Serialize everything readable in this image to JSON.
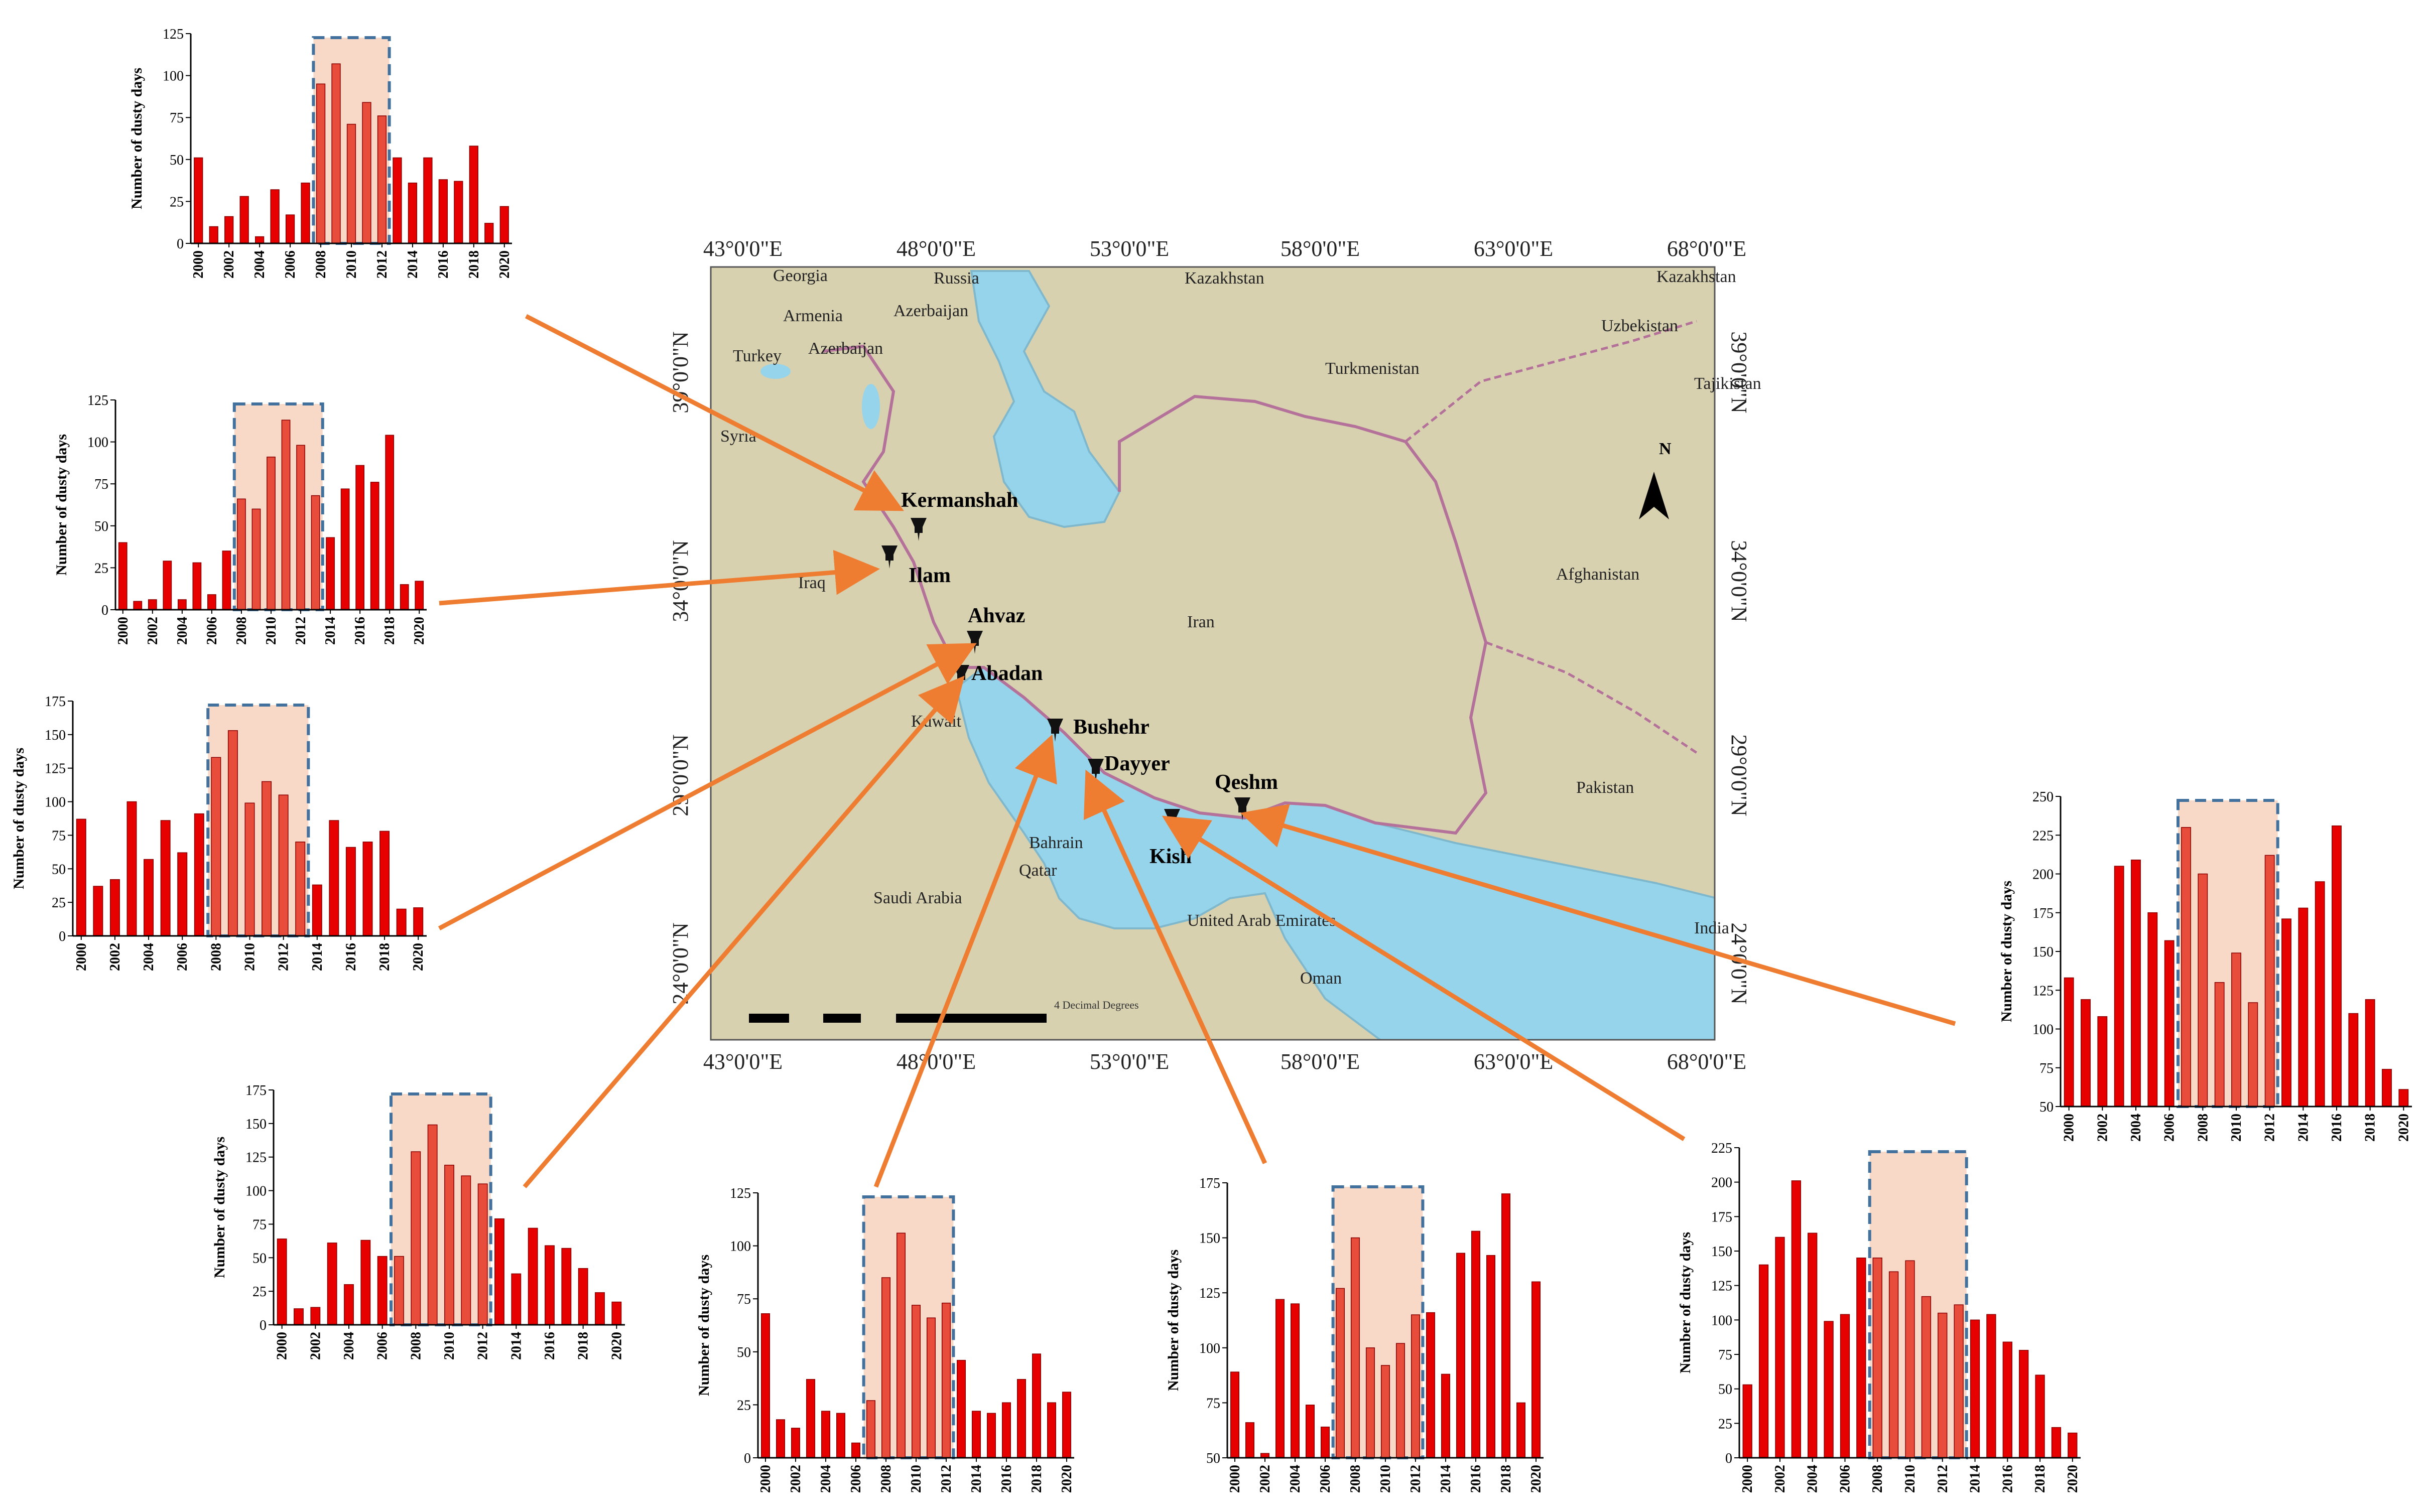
{
  "map": {
    "top_lon_labels": [
      "43°0'0\"E",
      "48°0'0\"E",
      "53°0'0\"E",
      "58°0'0\"E",
      "63°0'0\"E",
      "68°0'0\"E"
    ],
    "bottom_lon_labels": [
      "43°0'0\"E",
      "48°0'0\"E",
      "53°0'0\"E",
      "58°0'0\"E",
      "63°0'0\"E",
      "68°0'0\"E"
    ],
    "left_lat_labels": [
      "39°0'0\"N",
      "34°0'0\"N",
      "29°0'0\"N",
      "24°0'0\"N"
    ],
    "right_lat_labels": [
      "39°0'0\"N",
      "34°0'0\"N",
      "29°0'0\"N",
      "24°0'0\"N"
    ],
    "countries": [
      {
        "name": "Georgia"
      },
      {
        "name": "Russia"
      },
      {
        "name": "Kazakhstan"
      },
      {
        "name": "Kazakhstan"
      },
      {
        "name": "Armenia"
      },
      {
        "name": "Azerbaijan"
      },
      {
        "name": "Azerbaijan"
      },
      {
        "name": "Uzbekistan"
      },
      {
        "name": "Turkey"
      },
      {
        "name": "Turkmenistan"
      },
      {
        "name": "Tajikistan"
      },
      {
        "name": "Syria"
      },
      {
        "name": "Iraq"
      },
      {
        "name": "Iran"
      },
      {
        "name": "Afghanistan"
      },
      {
        "name": "Kuwait"
      },
      {
        "name": "Bahrain"
      },
      {
        "name": "Qatar"
      },
      {
        "name": "Saudi Arabia"
      },
      {
        "name": "United Arab Emirates"
      },
      {
        "name": "Oman"
      },
      {
        "name": "Pakistan"
      },
      {
        "name": "India"
      }
    ],
    "stations": [
      {
        "name": "Kermanshah"
      },
      {
        "name": "Ilam"
      },
      {
        "name": "Ahvaz"
      },
      {
        "name": "Abadan"
      },
      {
        "name": "Bushehr"
      },
      {
        "name": "Dayyer"
      },
      {
        "name": "Qeshm"
      },
      {
        "name": "Kish"
      }
    ],
    "north_label": "N",
    "scale_label": "4 Decimal Degrees",
    "colors": {
      "land": "#d7d1b0",
      "sea": "#96d4eb",
      "border": "#b4729a",
      "arrow": "#ee7d31",
      "bar": "#e60000",
      "highlight": "#f8d8c6",
      "highlight_border": "#41719c"
    }
  },
  "chart_data": [
    {
      "type": "bar",
      "ylabel": "Number of dusty days",
      "ylim": [
        0,
        125
      ],
      "yticks": [
        0,
        25,
        50,
        75,
        100,
        125
      ],
      "x": [
        2000,
        2001,
        2002,
        2003,
        2004,
        2005,
        2006,
        2007,
        2008,
        2009,
        2010,
        2011,
        2012,
        2013,
        2014,
        2015,
        2016,
        2017,
        2018,
        2019,
        2020
      ],
      "xtick_labels": [
        "2000",
        "2002",
        "2004",
        "2006",
        "2008",
        "2010",
        "2012",
        "2014",
        "2016",
        "2018",
        "2020"
      ],
      "values": [
        51,
        10,
        16,
        28,
        4,
        32,
        17,
        36,
        95,
        107,
        71,
        84,
        76,
        51,
        36,
        51,
        38,
        37,
        58,
        12,
        22
      ],
      "highlight": [
        2008,
        2012
      ]
    },
    {
      "type": "bar",
      "ylabel": "Number of dusty days",
      "ylim": [
        0,
        125
      ],
      "yticks": [
        0,
        25,
        50,
        75,
        100,
        125
      ],
      "x": [
        2000,
        2001,
        2002,
        2003,
        2004,
        2005,
        2006,
        2007,
        2008,
        2009,
        2010,
        2011,
        2012,
        2013,
        2014,
        2015,
        2016,
        2017,
        2018,
        2019,
        2020
      ],
      "xtick_labels": [
        "2000",
        "2002",
        "2004",
        "2006",
        "2008",
        "2010",
        "2012",
        "2014",
        "2016",
        "2018",
        "2020"
      ],
      "values": [
        40,
        5,
        6,
        29,
        6,
        28,
        9,
        35,
        66,
        60,
        91,
        113,
        98,
        68,
        43,
        72,
        86,
        76,
        104,
        15,
        17
      ],
      "highlight": [
        2008,
        2013
      ]
    },
    {
      "type": "bar",
      "ylabel": "Number of dusty days",
      "ylim": [
        0,
        175
      ],
      "yticks": [
        0,
        25,
        50,
        75,
        100,
        125,
        150,
        175
      ],
      "x": [
        2000,
        2001,
        2002,
        2003,
        2004,
        2005,
        2006,
        2007,
        2008,
        2009,
        2010,
        2011,
        2012,
        2013,
        2014,
        2015,
        2016,
        2017,
        2018,
        2019,
        2020
      ],
      "xtick_labels": [
        "2000",
        "2002",
        "2004",
        "2006",
        "2008",
        "2010",
        "2012",
        "2014",
        "2016",
        "2018",
        "2020"
      ],
      "values": [
        87,
        37,
        42,
        100,
        57,
        86,
        62,
        91,
        133,
        153,
        99,
        115,
        105,
        70,
        38,
        86,
        66,
        70,
        78,
        20,
        21
      ],
      "highlight": [
        2008,
        2013
      ]
    },
    {
      "type": "bar",
      "ylabel": "Number of dusty days",
      "ylim": [
        0,
        175
      ],
      "yticks": [
        0,
        25,
        50,
        75,
        100,
        125,
        150,
        175
      ],
      "x": [
        2000,
        2001,
        2002,
        2003,
        2004,
        2005,
        2006,
        2007,
        2008,
        2009,
        2010,
        2011,
        2012,
        2013,
        2014,
        2015,
        2016,
        2017,
        2018,
        2019,
        2020
      ],
      "xtick_labels": [
        "2000",
        "2002",
        "2004",
        "2006",
        "2008",
        "2010",
        "2012",
        "2014",
        "2016",
        "2018",
        "2020"
      ],
      "values": [
        64,
        12,
        13,
        61,
        30,
        63,
        51,
        51,
        129,
        149,
        119,
        111,
        105,
        79,
        38,
        72,
        59,
        57,
        42,
        24,
        17
      ],
      "highlight": [
        2007,
        2012
      ]
    },
    {
      "type": "bar",
      "ylabel": "Number of dusty days",
      "ylim": [
        0,
        125
      ],
      "yticks": [
        0,
        25,
        50,
        75,
        100,
        125
      ],
      "x": [
        2000,
        2001,
        2002,
        2003,
        2004,
        2005,
        2006,
        2007,
        2008,
        2009,
        2010,
        2011,
        2012,
        2013,
        2014,
        2015,
        2016,
        2017,
        2018,
        2019,
        2020
      ],
      "xtick_labels": [
        "2000",
        "2002",
        "2004",
        "2006",
        "2008",
        "2010",
        "2012",
        "2014",
        "2016",
        "2018",
        "2020"
      ],
      "values": [
        68,
        18,
        14,
        37,
        22,
        21,
        7,
        27,
        85,
        106,
        72,
        66,
        73,
        46,
        22,
        21,
        26,
        37,
        49,
        26,
        31
      ],
      "highlight": [
        2007,
        2012
      ]
    },
    {
      "type": "bar",
      "ylabel": "Number of dusty days",
      "ylim": [
        50,
        175
      ],
      "yticks": [
        50,
        75,
        100,
        125,
        150,
        175
      ],
      "x": [
        2000,
        2001,
        2002,
        2003,
        2004,
        2005,
        2006,
        2007,
        2008,
        2009,
        2010,
        2011,
        2012,
        2013,
        2014,
        2015,
        2016,
        2017,
        2018,
        2019,
        2020
      ],
      "xtick_labels": [
        "2000",
        "2002",
        "2004",
        "2006",
        "2008",
        "2010",
        "2012",
        "2014",
        "2016",
        "2018",
        "2020"
      ],
      "values": [
        89,
        66,
        52,
        122,
        120,
        74,
        64,
        127,
        150,
        100,
        92,
        102,
        115,
        116,
        88,
        143,
        153,
        142,
        170,
        75,
        130
      ],
      "highlight": [
        2007,
        2012
      ]
    },
    {
      "type": "bar",
      "ylabel": "Number of dusty days",
      "ylim": [
        0,
        225
      ],
      "yticks": [
        0,
        25,
        50,
        75,
        100,
        125,
        150,
        175,
        200,
        225
      ],
      "x": [
        2000,
        2001,
        2002,
        2003,
        2004,
        2005,
        2006,
        2007,
        2008,
        2009,
        2010,
        2011,
        2012,
        2013,
        2014,
        2015,
        2016,
        2017,
        2018,
        2019,
        2020
      ],
      "xtick_labels": [
        "2000",
        "2002",
        "2004",
        "2006",
        "2008",
        "2010",
        "2012",
        "2014",
        "2016",
        "2018",
        "2020"
      ],
      "values": [
        53,
        140,
        160,
        201,
        163,
        99,
        104,
        145,
        145,
        135,
        143,
        117,
        105,
        111,
        100,
        104,
        84,
        78,
        60,
        22,
        18
      ],
      "highlight": [
        2008,
        2013
      ]
    },
    {
      "type": "bar",
      "ylabel": "Number of dusty days",
      "ylim": [
        50,
        250
      ],
      "yticks": [
        50,
        75,
        100,
        125,
        150,
        175,
        200,
        225,
        250
      ],
      "x": [
        2000,
        2001,
        2002,
        2003,
        2004,
        2005,
        2006,
        2007,
        2008,
        2009,
        2010,
        2011,
        2012,
        2013,
        2014,
        2015,
        2016,
        2017,
        2018,
        2019,
        2020
      ],
      "xtick_labels": [
        "2000",
        "2002",
        "2004",
        "2006",
        "2008",
        "2010",
        "2012",
        "2014",
        "2016",
        "2018",
        "2020"
      ],
      "values": [
        133,
        119,
        108,
        205,
        209,
        175,
        157,
        230,
        200,
        130,
        149,
        117,
        212,
        171,
        178,
        195,
        231,
        110,
        119,
        74,
        61
      ],
      "highlight": [
        2007,
        2012
      ]
    }
  ]
}
